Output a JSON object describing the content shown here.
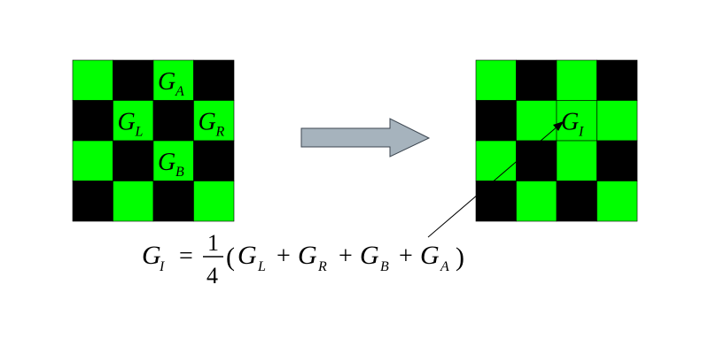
{
  "colors": {
    "green": "#00ff00",
    "black": "#000000",
    "arrow_fill": "#a6b3bd",
    "arrow_stroke": "#3c4650"
  },
  "left_grid": {
    "cells": [
      [
        "green",
        "black",
        "green",
        "black"
      ],
      [
        "black",
        "green",
        "black",
        "green"
      ],
      [
        "green",
        "black",
        "green",
        "black"
      ],
      [
        "black",
        "green",
        "black",
        "green"
      ]
    ],
    "labels": [
      {
        "main": "G",
        "sub": "A",
        "row": 0,
        "col": 2
      },
      {
        "main": "G",
        "sub": "L",
        "row": 1,
        "col": 1
      },
      {
        "main": "G",
        "sub": "R",
        "row": 1,
        "col": 3
      },
      {
        "main": "G",
        "sub": "B",
        "row": 2,
        "col": 2
      }
    ]
  },
  "right_grid": {
    "cells": [
      [
        "green",
        "black",
        "green",
        "black"
      ],
      [
        "black",
        "green",
        "green",
        "green"
      ],
      [
        "green",
        "black",
        "green",
        "black"
      ],
      [
        "black",
        "green",
        "black",
        "green"
      ]
    ],
    "labels": [
      {
        "main": "G",
        "sub": "I",
        "row": 1,
        "col": 2
      }
    ]
  },
  "formula": {
    "lhs_main": "G",
    "lhs_sub": "I",
    "equals": "=",
    "frac_num": "1",
    "frac_den": "4",
    "open_paren": "(",
    "terms": [
      {
        "main": "G",
        "sub": "L"
      },
      {
        "main": "G",
        "sub": "R"
      },
      {
        "main": "G",
        "sub": "B"
      },
      {
        "main": "G",
        "sub": "A"
      }
    ],
    "plus": "+",
    "close_paren": ")"
  }
}
